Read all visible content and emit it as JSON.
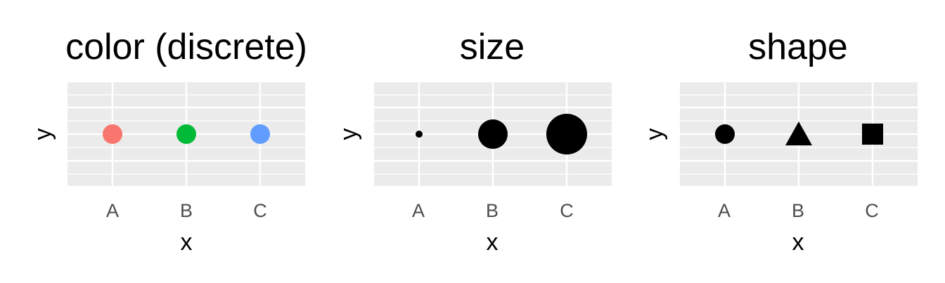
{
  "chart_data": [
    {
      "type": "scatter",
      "title": "color (discrete)",
      "xlabel": "x",
      "ylabel": "y",
      "categories": [
        "A",
        "B",
        "C"
      ],
      "points": [
        {
          "x": "A",
          "color": "#F8766D"
        },
        {
          "x": "B",
          "color": "#00BA38"
        },
        {
          "x": "C",
          "color": "#619CFF"
        }
      ],
      "grid": true
    },
    {
      "type": "scatter",
      "title": "size",
      "xlabel": "x",
      "ylabel": "y",
      "categories": [
        "A",
        "B",
        "C"
      ],
      "points": [
        {
          "x": "A",
          "size": "small"
        },
        {
          "x": "B",
          "size": "medium"
        },
        {
          "x": "C",
          "size": "large"
        }
      ],
      "grid": true
    },
    {
      "type": "scatter",
      "title": "shape",
      "xlabel": "x",
      "ylabel": "y",
      "categories": [
        "A",
        "B",
        "C"
      ],
      "points": [
        {
          "x": "A",
          "shape": "circle"
        },
        {
          "x": "B",
          "shape": "triangle"
        },
        {
          "x": "C",
          "shape": "square"
        }
      ],
      "grid": true
    }
  ],
  "colors": {
    "panel_background": "#EBEBEB",
    "grid_line": "#FFFFFF",
    "point_default": "#000000"
  }
}
